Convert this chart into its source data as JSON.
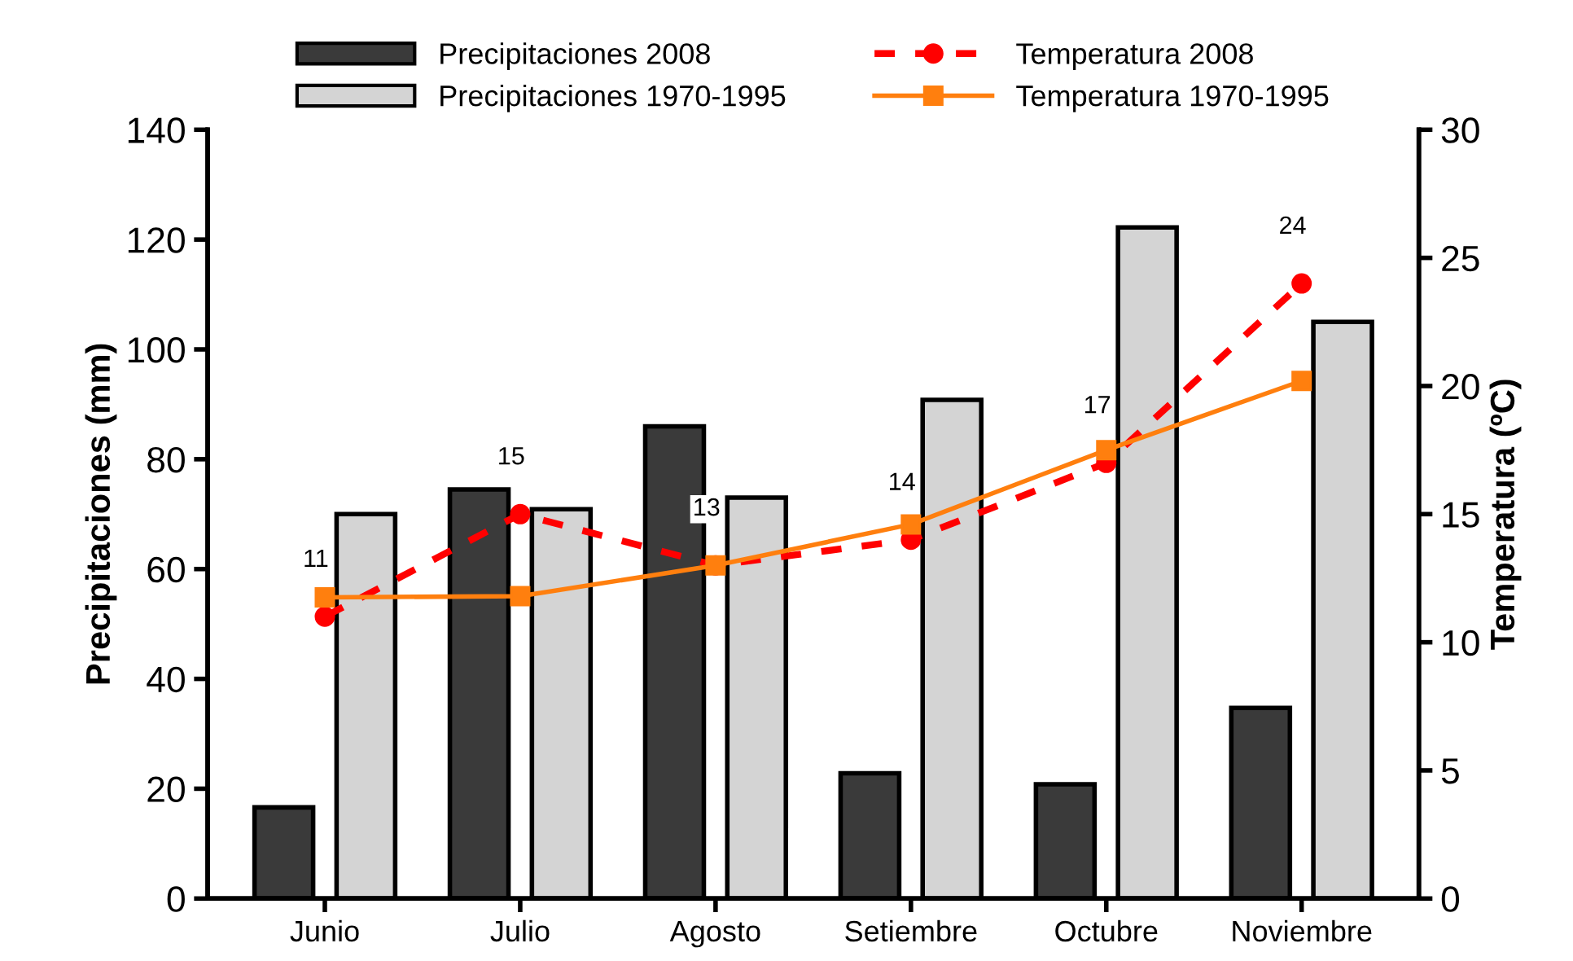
{
  "chart_data": {
    "type": "bar",
    "ylabel": "Precipitaciones (mm)",
    "y2label": "Temperatura (ºC)",
    "categories": [
      "Junio",
      "Julio",
      "Agosto",
      "Setiembre",
      "Octubre",
      "Noviembre"
    ],
    "series": [
      {
        "name": "Precipitaciones 2008",
        "color": "#3a3a3a",
        "values": [
          16.6,
          74.5,
          86,
          22.8,
          20.8,
          34.7
        ]
      },
      {
        "name": "Precipitaciones 1970-1995",
        "color": "#d4d4d4",
        "values": [
          70,
          70.9,
          73,
          90.8,
          122.2,
          105
        ]
      },
      {
        "name": "Temperatura 2008",
        "type": "line",
        "axis": "y2",
        "color": "#ff0000",
        "marker": "circle",
        "line_style": "dashed",
        "data_labels": true,
        "values": [
          11,
          15,
          13,
          14,
          17,
          24
        ]
      },
      {
        "name": "Temperatura 1970-1995",
        "type": "line",
        "axis": "y2",
        "color": "#ff7f0e",
        "marker": "square",
        "line_style": "solid",
        "values": [
          11.75,
          11.8,
          13.0,
          14.6,
          17.5,
          20.2
        ]
      }
    ],
    "ylim": [
      0,
      140
    ],
    "yticks": [
      0,
      20,
      40,
      60,
      80,
      100,
      120,
      140
    ],
    "y2lim": [
      0,
      30
    ],
    "y2ticks": [
      0,
      5,
      10,
      15,
      20,
      25,
      30
    ],
    "grid": false,
    "legend": "top"
  }
}
